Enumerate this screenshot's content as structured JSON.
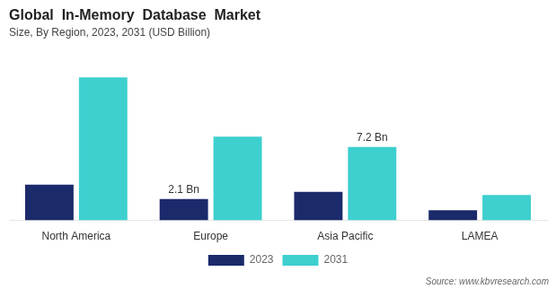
{
  "chart_data": {
    "type": "bar",
    "title": "Global  In-Memory  Database  Market",
    "subtitle": "Size, By Region, 2023, 2031 (USD Billion)",
    "categories": [
      "North America",
      "Europe",
      "Asia Pacific",
      "LAMEA"
    ],
    "series": [
      {
        "name": "2023",
        "color": "#1b2a6b",
        "values": [
          3.5,
          2.1,
          2.8,
          1.0
        ]
      },
      {
        "name": "2031",
        "color": "#3ecfcf",
        "values": [
          14.0,
          8.2,
          7.2,
          2.5
        ]
      }
    ],
    "annotations": [
      {
        "text": "2.1 Bn",
        "category": "Europe",
        "series": "2023"
      },
      {
        "text": "7.2 Bn",
        "category": "Asia Pacific",
        "series": "2031"
      }
    ],
    "source": "Source: www.kbvresearch.com",
    "ylim": [
      0,
      16
    ],
    "grid": false,
    "legend": "bottom",
    "tick_labels": "x"
  }
}
